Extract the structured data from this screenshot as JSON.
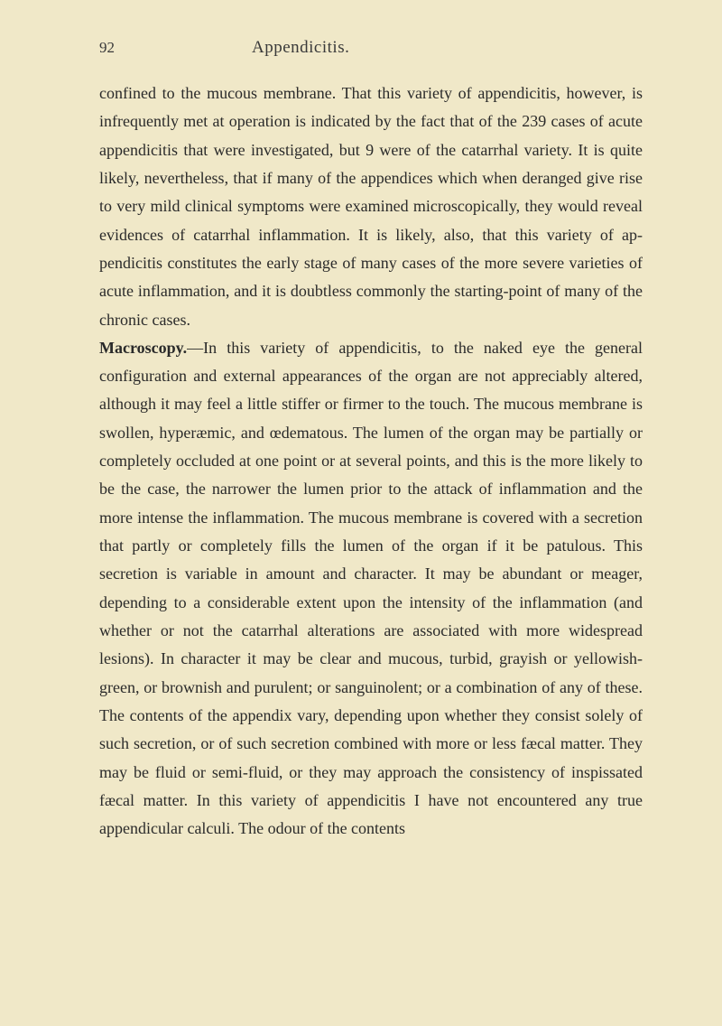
{
  "header": {
    "page_number": "92",
    "title": "Appendicitis."
  },
  "paragraphs": {
    "p1": "confined to the mucous membrane. That this variety of appen­dicitis, however, is infrequently met at operation is indicated by the fact that of the 239 cases of acute appendicitis that were investigated, but 9 were of the catarrhal variety. It is quite likely, nevertheless, that if many of the appendices which when deranged give rise to very mild clinical symptoms were ex­amined microscopically, they would reveal evidences of catar­rhal inflammation. It is likely, also, that this variety of ap­pendicitis constitutes the early stage of many cases of the more severe varieties of acute inflammation, and it is doubtless com­monly the starting-point of many of the chronic cases.",
    "p2_bold": "Macroscopy.",
    "p2": "—In this variety of appendicitis, to the naked eye the general configuration and external appearances of the organ are not appreciably altered, although it may feel a little stiffer or firmer to the touch. The mucous membrane is swollen, hyperæmic, and œdematous. The lumen of the organ may be partially or completely occluded at one point or at several points, and this is the more likely to be the case, the narrower the lumen prior to the attack of inflammation and the more intense the inflammation. The mucous membrane is covered with a secre­tion that partly or completely fills the lumen of the organ if it be patulous. This secretion is variable in amount and char­acter. It may be abundant or meager, depending to a con­siderable extent upon the intensity of the inflammation (and whether or not the catarrhal alterations are associated with more widespread lesions). In character it may be clear and mucous, turbid, grayish or yellowish-green, or brownish and purulent; or sanguinolent; or a combination of any of these. The contents of the appendix vary, depending upon whether they consist solely of such secretion, or of such secretion com­bined with more or less fæcal matter. They may be fluid or semi-fluid, or they may approach the consistency of inspissated fæcal matter. In this variety of appendicitis I have not encoun­tered any true appendicular calculi. The odour of the contents"
  },
  "styling": {
    "background_color": "#f0e8c8",
    "text_color": "#2a2a2a",
    "body_font_size": 18,
    "header_font_size": 19,
    "page_number_font_size": 17,
    "line_height": 1.74,
    "font_family": "Georgia, Times New Roman, serif"
  }
}
